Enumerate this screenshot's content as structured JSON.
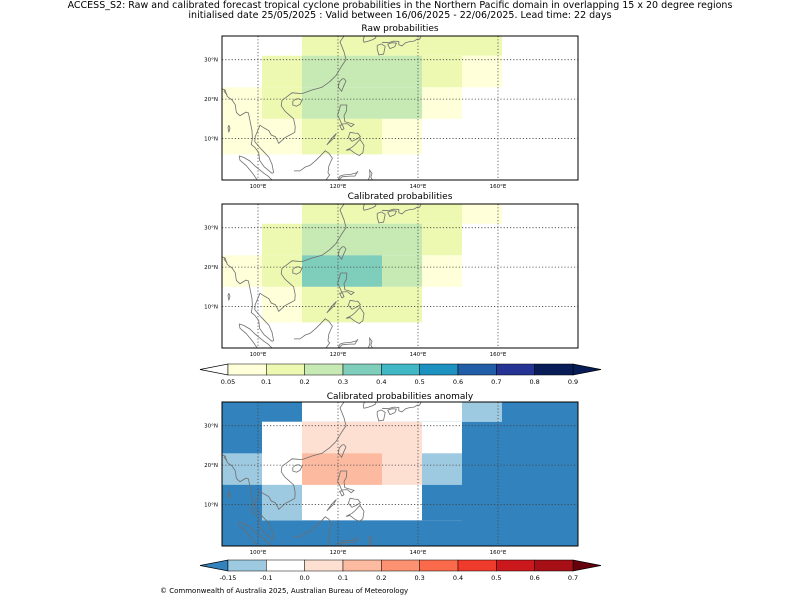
{
  "header": {
    "line1": "ACCESS_S2: Raw and calibrated forecast tropical cyclone probabilities in the Northern Pacific domain in overlapping 15 x 20 degree regions",
    "line2": "initialised date 25/05/2025 :  Valid between 16/06/2025 - 22/06/2025. Lead time: 22 days"
  },
  "map_axes": {
    "lon_range": [
      91,
      180
    ],
    "lat_range": [
      -0.5,
      36
    ],
    "lon_ticks": [
      100,
      120,
      140,
      160
    ],
    "lat_ticks": [
      10,
      20,
      30
    ],
    "lon_tick_labels": [
      "100°E",
      "120°E",
      "140°E",
      "160°E"
    ],
    "lat_tick_labels": [
      "10°N",
      "20°N",
      "30°N"
    ]
  },
  "panels": [
    {
      "title": "Raw probabilities",
      "scale": "prob",
      "cells": [
        {
          "lon": [
            111,
            121
          ],
          "lat": [
            31,
            36
          ],
          "c": "#edf8b1"
        },
        {
          "lon": [
            121,
            131
          ],
          "lat": [
            31,
            36
          ],
          "c": "#edf8b1"
        },
        {
          "lon": [
            131,
            141
          ],
          "lat": [
            31,
            36
          ],
          "c": "#edf8b1"
        },
        {
          "lon": [
            141,
            151
          ],
          "lat": [
            31,
            36
          ],
          "c": "#edf8b1"
        },
        {
          "lon": [
            151,
            161
          ],
          "lat": [
            31,
            36
          ],
          "c": "#edf8b1"
        },
        {
          "lon": [
            101,
            111
          ],
          "lat": [
            23,
            31
          ],
          "c": "#edf8b1"
        },
        {
          "lon": [
            111,
            121
          ],
          "lat": [
            23,
            31
          ],
          "c": "#c7e9b4"
        },
        {
          "lon": [
            121,
            131
          ],
          "lat": [
            23,
            31
          ],
          "c": "#c7e9b4"
        },
        {
          "lon": [
            131,
            141
          ],
          "lat": [
            23,
            31
          ],
          "c": "#c7e9b4"
        },
        {
          "lon": [
            141,
            151
          ],
          "lat": [
            23,
            31
          ],
          "c": "#edf8b1"
        },
        {
          "lon": [
            151,
            161
          ],
          "lat": [
            23,
            31
          ],
          "c": "#ffffd9"
        },
        {
          "lon": [
            91,
            101
          ],
          "lat": [
            15,
            23
          ],
          "c": "#ffffd9"
        },
        {
          "lon": [
            101,
            111
          ],
          "lat": [
            15,
            23
          ],
          "c": "#edf8b1"
        },
        {
          "lon": [
            111,
            121
          ],
          "lat": [
            15,
            23
          ],
          "c": "#c7e9b4"
        },
        {
          "lon": [
            121,
            131
          ],
          "lat": [
            15,
            23
          ],
          "c": "#c7e9b4"
        },
        {
          "lon": [
            131,
            141
          ],
          "lat": [
            15,
            23
          ],
          "c": "#c7e9b4"
        },
        {
          "lon": [
            141,
            151
          ],
          "lat": [
            15,
            23
          ],
          "c": "#ffffd9"
        },
        {
          "lon": [
            91,
            101
          ],
          "lat": [
            6,
            15
          ],
          "c": "#ffffd9"
        },
        {
          "lon": [
            101,
            111
          ],
          "lat": [
            6,
            15
          ],
          "c": "#ffffd9"
        },
        {
          "lon": [
            111,
            121
          ],
          "lat": [
            6,
            15
          ],
          "c": "#edf8b1"
        },
        {
          "lon": [
            121,
            131
          ],
          "lat": [
            6,
            15
          ],
          "c": "#edf8b1"
        },
        {
          "lon": [
            131,
            141
          ],
          "lat": [
            6,
            15
          ],
          "c": "#ffffd9"
        }
      ]
    },
    {
      "title": "Calibrated probabilities",
      "scale": "prob",
      "cells": [
        {
          "lon": [
            111,
            121
          ],
          "lat": [
            31,
            36
          ],
          "c": "#edf8b1"
        },
        {
          "lon": [
            121,
            131
          ],
          "lat": [
            31,
            36
          ],
          "c": "#edf8b1"
        },
        {
          "lon": [
            131,
            141
          ],
          "lat": [
            31,
            36
          ],
          "c": "#edf8b1"
        },
        {
          "lon": [
            141,
            151
          ],
          "lat": [
            31,
            36
          ],
          "c": "#edf8b1"
        },
        {
          "lon": [
            151,
            161
          ],
          "lat": [
            31,
            36
          ],
          "c": "#ffffd9"
        },
        {
          "lon": [
            101,
            111
          ],
          "lat": [
            23,
            31
          ],
          "c": "#edf8b1"
        },
        {
          "lon": [
            111,
            121
          ],
          "lat": [
            23,
            31
          ],
          "c": "#c7e9b4"
        },
        {
          "lon": [
            121,
            131
          ],
          "lat": [
            23,
            31
          ],
          "c": "#c7e9b4"
        },
        {
          "lon": [
            131,
            141
          ],
          "lat": [
            23,
            31
          ],
          "c": "#c7e9b4"
        },
        {
          "lon": [
            141,
            151
          ],
          "lat": [
            23,
            31
          ],
          "c": "#edf8b1"
        },
        {
          "lon": [
            91,
            101
          ],
          "lat": [
            15,
            23
          ],
          "c": "#ffffd9"
        },
        {
          "lon": [
            101,
            111
          ],
          "lat": [
            15,
            23
          ],
          "c": "#edf8b1"
        },
        {
          "lon": [
            111,
            121
          ],
          "lat": [
            15,
            23
          ],
          "c": "#7fcdbb"
        },
        {
          "lon": [
            121,
            131
          ],
          "lat": [
            15,
            23
          ],
          "c": "#7fcdbb"
        },
        {
          "lon": [
            131,
            141
          ],
          "lat": [
            15,
            23
          ],
          "c": "#c7e9b4"
        },
        {
          "lon": [
            141,
            151
          ],
          "lat": [
            15,
            23
          ],
          "c": "#ffffd9"
        },
        {
          "lon": [
            101,
            111
          ],
          "lat": [
            6,
            15
          ],
          "c": "#ffffd9"
        },
        {
          "lon": [
            111,
            121
          ],
          "lat": [
            6,
            15
          ],
          "c": "#edf8b1"
        },
        {
          "lon": [
            121,
            131
          ],
          "lat": [
            6,
            15
          ],
          "c": "#edf8b1"
        },
        {
          "lon": [
            131,
            141
          ],
          "lat": [
            6,
            15
          ],
          "c": "#edf8b1"
        }
      ]
    },
    {
      "title": "Calibrated probabilities anomaly",
      "scale": "anom",
      "cells": [
        {
          "lon": [
            91,
            180
          ],
          "lat": [
            -0.5,
            36
          ],
          "c": "#3182bd"
        },
        {
          "lon": [
            111,
            161
          ],
          "lat": [
            31,
            36
          ],
          "c": "#ffffff"
        },
        {
          "lon": [
            151,
            161
          ],
          "lat": [
            31,
            36
          ],
          "c": "#9ecae1"
        },
        {
          "lon": [
            101,
            151
          ],
          "lat": [
            6,
            31
          ],
          "c": "#ffffff"
        },
        {
          "lon": [
            111,
            141
          ],
          "lat": [
            15,
            31
          ],
          "c": "#fee0d2"
        },
        {
          "lon": [
            111,
            131
          ],
          "lat": [
            15,
            23
          ],
          "c": "#fcbba1"
        },
        {
          "lon": [
            91,
            101
          ],
          "lat": [
            15,
            23
          ],
          "c": "#9ecae1"
        },
        {
          "lon": [
            141,
            151
          ],
          "lat": [
            15,
            23
          ],
          "c": "#9ecae1"
        },
        {
          "lon": [
            101,
            111
          ],
          "lat": [
            6,
            15
          ],
          "c": "#9ecae1"
        },
        {
          "lon": [
            141,
            151
          ],
          "lat": [
            6,
            15
          ],
          "c": "#3182bd"
        }
      ]
    }
  ],
  "colorbars": [
    {
      "id": "prob",
      "labels": [
        "0.05",
        "0.1",
        "0.2",
        "0.3",
        "0.4",
        "0.5",
        "0.6",
        "0.7",
        "0.8",
        "0.9"
      ],
      "under_color": "#ffffff",
      "colors": [
        "#ffffd9",
        "#edf8b1",
        "#c7e9b4",
        "#7fcdbb",
        "#41b6c4",
        "#1d91c0",
        "#225ea8",
        "#253494",
        "#081d58"
      ],
      "over_color": "#081d58"
    },
    {
      "id": "anom",
      "labels": [
        "-0.15",
        "-0.1",
        "0.0",
        "0.1",
        "0.2",
        "0.3",
        "0.4",
        "0.5",
        "0.6",
        "0.7"
      ],
      "under_color": "#3182bd",
      "colors": [
        "#9ecae1",
        "#ffffff",
        "#fee0d2",
        "#fcbba1",
        "#fc9272",
        "#fb6a4a",
        "#ef3b2c",
        "#cb181d",
        "#a50f15"
      ],
      "over_color": "#67000d"
    }
  ],
  "footer": "© Commonwealth of Australia 2025, Australian Bureau of Meteorology"
}
